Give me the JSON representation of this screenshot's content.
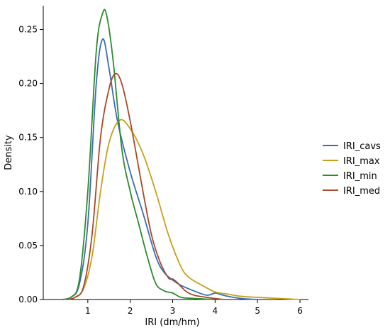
{
  "chart_data": {
    "type": "line",
    "xlabel": "IRI (dm/hm)",
    "ylabel": "Density",
    "xlim": [
      -0.05,
      6.2
    ],
    "ylim": [
      0,
      0.272
    ],
    "xticks": [
      1,
      2,
      3,
      4,
      5,
      6
    ],
    "yticks": [
      0.0,
      0.05,
      0.1,
      0.15,
      0.2,
      0.25
    ],
    "ytick_labels": [
      "0.00",
      "0.05",
      "0.10",
      "0.15",
      "0.20",
      "0.25"
    ],
    "grid": false,
    "legend_position": "right",
    "series": [
      {
        "name": "IRI_cavs",
        "color": "#3a6db5",
        "points": [
          [
            0.4,
            0.0
          ],
          [
            0.6,
            0.002
          ],
          [
            0.8,
            0.014
          ],
          [
            1.0,
            0.07
          ],
          [
            1.2,
            0.2
          ],
          [
            1.35,
            0.241
          ],
          [
            1.5,
            0.214
          ],
          [
            1.7,
            0.165
          ],
          [
            2.0,
            0.118
          ],
          [
            2.3,
            0.08
          ],
          [
            2.6,
            0.04
          ],
          [
            2.8,
            0.025
          ],
          [
            3.0,
            0.018
          ],
          [
            3.2,
            0.013
          ],
          [
            3.5,
            0.008
          ],
          [
            3.8,
            0.004
          ],
          [
            4.0,
            0.006
          ],
          [
            4.1,
            0.005
          ],
          [
            4.3,
            0.003
          ],
          [
            4.6,
            0.001
          ],
          [
            5.0,
            0.0
          ]
        ]
      },
      {
        "name": "IRI_max",
        "color": "#c6a01d",
        "points": [
          [
            0.5,
            0.0
          ],
          [
            0.7,
            0.002
          ],
          [
            0.9,
            0.01
          ],
          [
            1.1,
            0.04
          ],
          [
            1.3,
            0.1
          ],
          [
            1.5,
            0.145
          ],
          [
            1.75,
            0.166
          ],
          [
            2.0,
            0.158
          ],
          [
            2.3,
            0.135
          ],
          [
            2.6,
            0.1
          ],
          [
            2.9,
            0.06
          ],
          [
            3.2,
            0.03
          ],
          [
            3.4,
            0.02
          ],
          [
            3.7,
            0.013
          ],
          [
            4.0,
            0.007
          ],
          [
            4.3,
            0.005
          ],
          [
            4.6,
            0.003
          ],
          [
            5.0,
            0.002
          ],
          [
            5.5,
            0.001
          ],
          [
            6.0,
            0.0
          ]
        ]
      },
      {
        "name": "IRI_min",
        "color": "#2e8a2e",
        "points": [
          [
            0.4,
            0.0
          ],
          [
            0.6,
            0.002
          ],
          [
            0.8,
            0.018
          ],
          [
            1.0,
            0.1
          ],
          [
            1.2,
            0.23
          ],
          [
            1.35,
            0.265
          ],
          [
            1.45,
            0.262
          ],
          [
            1.6,
            0.22
          ],
          [
            1.8,
            0.14
          ],
          [
            2.0,
            0.1
          ],
          [
            2.2,
            0.07
          ],
          [
            2.4,
            0.04
          ],
          [
            2.6,
            0.015
          ],
          [
            2.8,
            0.008
          ],
          [
            3.0,
            0.006
          ],
          [
            3.2,
            0.002
          ],
          [
            3.5,
            0.001
          ],
          [
            4.0,
            0.0
          ]
        ]
      },
      {
        "name": "IRI_med",
        "color": "#a54a2a",
        "points": [
          [
            0.5,
            0.0
          ],
          [
            0.7,
            0.002
          ],
          [
            0.9,
            0.012
          ],
          [
            1.1,
            0.06
          ],
          [
            1.3,
            0.15
          ],
          [
            1.5,
            0.195
          ],
          [
            1.65,
            0.209
          ],
          [
            1.8,
            0.2
          ],
          [
            2.0,
            0.165
          ],
          [
            2.3,
            0.1
          ],
          [
            2.5,
            0.06
          ],
          [
            2.7,
            0.035
          ],
          [
            2.9,
            0.02
          ],
          [
            3.0,
            0.019
          ],
          [
            3.1,
            0.016
          ],
          [
            3.3,
            0.008
          ],
          [
            3.5,
            0.004
          ],
          [
            3.8,
            0.002
          ],
          [
            4.2,
            0.0
          ]
        ]
      }
    ]
  }
}
